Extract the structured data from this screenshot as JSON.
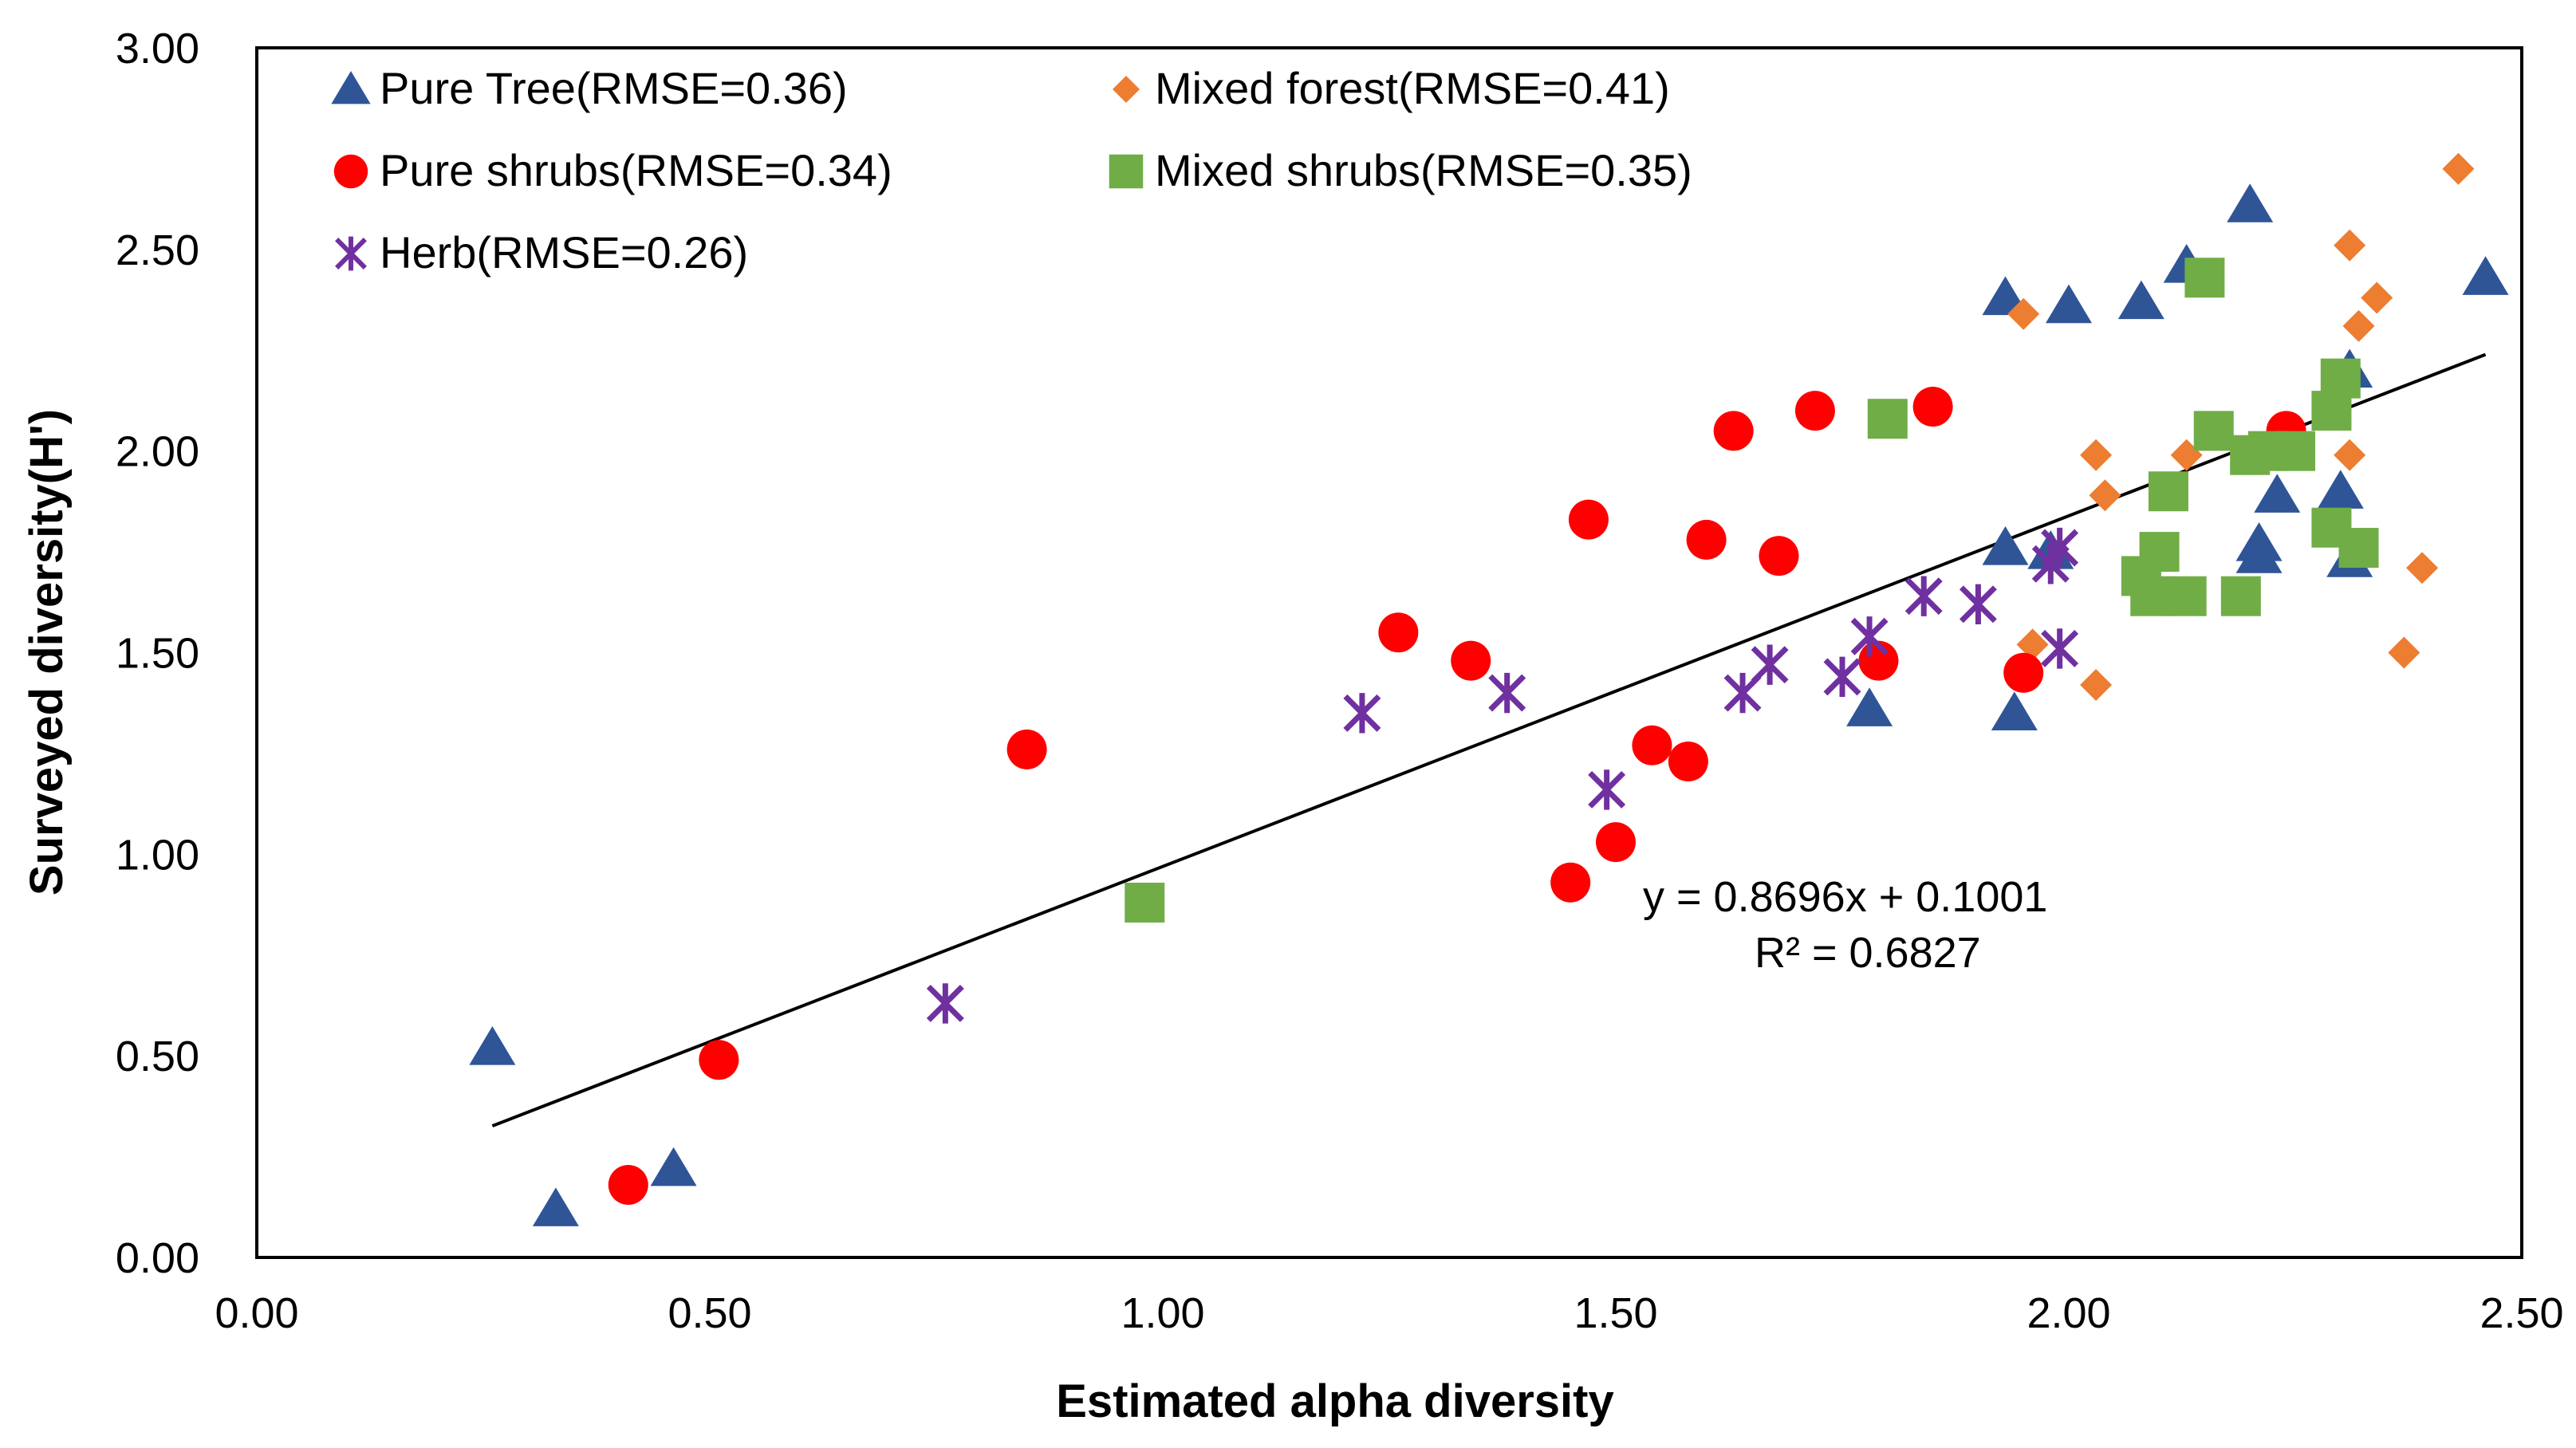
{
  "chart_data": {
    "type": "scatter",
    "xlabel": "Estimated alpha diversity",
    "ylabel": "Surveyed diversity(H')",
    "xlim": [
      0,
      2.5
    ],
    "ylim": [
      0,
      3
    ],
    "xticks": [
      "0.00",
      "0.50",
      "1.00",
      "1.50",
      "2.00",
      "2.50"
    ],
    "yticks": [
      "0.00",
      "0.50",
      "1.00",
      "1.50",
      "2.00",
      "2.50",
      "3.00"
    ],
    "grid": false,
    "legend_position": "top-left",
    "series": [
      {
        "name": "Pure Tree(RMSE=0.36)",
        "marker": "triangle",
        "color": "#2f5597",
        "points": [
          [
            0.26,
            0.52
          ],
          [
            0.33,
            0.12
          ],
          [
            0.46,
            0.22
          ],
          [
            1.78,
            1.36
          ],
          [
            1.93,
            2.38
          ],
          [
            1.93,
            1.76
          ],
          [
            1.94,
            1.35
          ],
          [
            1.98,
            1.75
          ],
          [
            2.0,
            2.36
          ],
          [
            2.08,
            2.37
          ],
          [
            2.13,
            2.46
          ],
          [
            2.2,
            2.61
          ],
          [
            2.21,
            1.77
          ],
          [
            2.21,
            1.74
          ],
          [
            2.23,
            1.89
          ],
          [
            2.3,
            1.9
          ],
          [
            2.31,
            2.2
          ],
          [
            2.31,
            1.73
          ],
          [
            2.46,
            2.43
          ]
        ]
      },
      {
        "name": "Mixed forest(RMSE=0.41)",
        "marker": "diamond",
        "color": "#ed7d31",
        "points": [
          [
            1.95,
            2.34
          ],
          [
            1.96,
            1.52
          ],
          [
            2.03,
            1.99
          ],
          [
            2.03,
            1.42
          ],
          [
            2.04,
            1.89
          ],
          [
            2.13,
            1.99
          ],
          [
            2.31,
            2.51
          ],
          [
            2.31,
            1.99
          ],
          [
            2.32,
            2.31
          ],
          [
            2.34,
            2.38
          ],
          [
            2.37,
            1.5
          ],
          [
            2.39,
            1.71
          ],
          [
            2.43,
            2.7
          ]
        ]
      },
      {
        "name": "Pure shrubs(RMSE=0.34)",
        "marker": "circle",
        "color": "#ff0000",
        "points": [
          [
            0.41,
            0.18
          ],
          [
            0.51,
            0.49
          ],
          [
            0.85,
            1.26
          ],
          [
            1.26,
            1.55
          ],
          [
            1.34,
            1.48
          ],
          [
            1.45,
            0.93
          ],
          [
            1.47,
            1.83
          ],
          [
            1.5,
            1.03
          ],
          [
            1.54,
            1.27
          ],
          [
            1.58,
            1.23
          ],
          [
            1.6,
            1.78
          ],
          [
            1.63,
            2.05
          ],
          [
            1.68,
            1.74
          ],
          [
            1.72,
            2.1
          ],
          [
            1.79,
            1.48
          ],
          [
            1.85,
            2.11
          ],
          [
            1.95,
            1.45
          ],
          [
            2.24,
            2.05
          ]
        ]
      },
      {
        "name": "Mixed shrubs(RMSE=0.35)",
        "marker": "square",
        "color": "#70ad47",
        "points": [
          [
            0.98,
            0.88
          ],
          [
            1.8,
            2.08
          ],
          [
            2.08,
            1.69
          ],
          [
            2.09,
            1.64
          ],
          [
            2.1,
            1.75
          ],
          [
            2.11,
            1.9
          ],
          [
            2.13,
            1.64
          ],
          [
            2.15,
            2.43
          ],
          [
            2.16,
            2.05
          ],
          [
            2.19,
            1.64
          ],
          [
            2.2,
            1.99
          ],
          [
            2.22,
            2.0
          ],
          [
            2.25,
            2.0
          ],
          [
            2.29,
            1.81
          ],
          [
            2.29,
            2.1
          ],
          [
            2.3,
            2.18
          ],
          [
            2.32,
            1.76
          ]
        ]
      },
      {
        "name": "Herb(RMSE=0.26)",
        "marker": "star",
        "color": "#7030a0",
        "points": [
          [
            0.76,
            0.63
          ],
          [
            1.22,
            1.35
          ],
          [
            1.38,
            1.4
          ],
          [
            1.49,
            1.16
          ],
          [
            1.64,
            1.4
          ],
          [
            1.67,
            1.47
          ],
          [
            1.75,
            1.44
          ],
          [
            1.78,
            1.54
          ],
          [
            1.84,
            1.64
          ],
          [
            1.9,
            1.62
          ],
          [
            1.98,
            1.72
          ],
          [
            1.99,
            1.76
          ],
          [
            1.99,
            1.51
          ]
        ]
      }
    ],
    "trendline": {
      "slope": 0.8696,
      "intercept": 0.1001,
      "x_range": [
        0.26,
        2.46
      ],
      "color": "#000000",
      "equation": "y = 0.8696x + 0.1001",
      "r2": "R² = 0.6827"
    }
  }
}
